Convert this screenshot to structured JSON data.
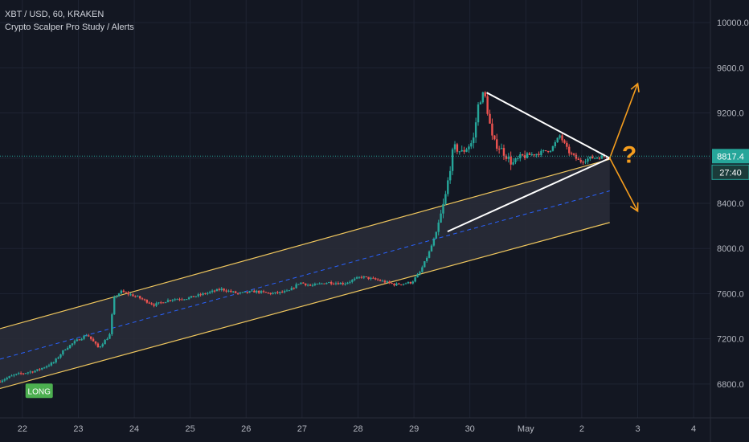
{
  "header": {
    "symbol_line": "XBT / USD, 60, KRAKEN",
    "study_line": "Crypto Scalper Pro Study / Alerts"
  },
  "colors": {
    "background": "#131722",
    "grid": "#1f2433",
    "axis_text": "#b2b5be",
    "up": "#26a69a",
    "down": "#ef5350",
    "channel_line": "#f0c75e",
    "channel_fill": "#2a2d38",
    "midline": "#2962ff",
    "triangle": "#ffffff",
    "arrow": "#f59d1e",
    "price_line": "#26a69a",
    "long_badge": "#4caf50"
  },
  "chart_data": {
    "type": "candlestick",
    "title": "",
    "xlabel": "",
    "ylabel": "",
    "x_ticks": [
      {
        "day": 22,
        "label": "22"
      },
      {
        "day": 23,
        "label": "23"
      },
      {
        "day": 24,
        "label": "24"
      },
      {
        "day": 25,
        "label": "25"
      },
      {
        "day": 26,
        "label": "26"
      },
      {
        "day": 27,
        "label": "27"
      },
      {
        "day": 28,
        "label": "28"
      },
      {
        "day": 29,
        "label": "29"
      },
      {
        "day": 30,
        "label": "30"
      },
      {
        "day": 31,
        "label": "May"
      },
      {
        "day": 32,
        "label": "2"
      },
      {
        "day": 33,
        "label": "3"
      },
      {
        "day": 34,
        "label": "4"
      }
    ],
    "xlim": [
      21.6,
      34.3
    ],
    "ylim": [
      6500,
      10200
    ],
    "y_ticks": [
      {
        "value": 10000,
        "label": "10000.0"
      },
      {
        "value": 9600,
        "label": "9600.0"
      },
      {
        "value": 9200,
        "label": "9200.0"
      },
      {
        "value": 8800,
        "label": "8800.0"
      },
      {
        "value": 8400,
        "label": "8400.0"
      },
      {
        "value": 8000,
        "label": "8000.0"
      },
      {
        "value": 7600,
        "label": "7600.0"
      },
      {
        "value": 7200,
        "label": "7200.0"
      },
      {
        "value": 6800,
        "label": "6800.0"
      }
    ],
    "grid": true,
    "price_waypoints": [
      [
        21.6,
        6820
      ],
      [
        21.9,
        6880
      ],
      [
        22.3,
        6920
      ],
      [
        22.6,
        6990
      ],
      [
        22.8,
        7110
      ],
      [
        23.0,
        7180
      ],
      [
        23.2,
        7240
      ],
      [
        23.4,
        7120
      ],
      [
        23.6,
        7230
      ],
      [
        23.68,
        7560
      ],
      [
        23.8,
        7620
      ],
      [
        24.1,
        7570
      ],
      [
        24.4,
        7500
      ],
      [
        24.7,
        7550
      ],
      [
        25.0,
        7560
      ],
      [
        25.3,
        7600
      ],
      [
        25.6,
        7640
      ],
      [
        25.9,
        7600
      ],
      [
        26.2,
        7620
      ],
      [
        26.5,
        7600
      ],
      [
        26.8,
        7620
      ],
      [
        27.0,
        7700
      ],
      [
        27.2,
        7670
      ],
      [
        27.5,
        7700
      ],
      [
        27.8,
        7690
      ],
      [
        28.1,
        7750
      ],
      [
        28.4,
        7720
      ],
      [
        28.7,
        7680
      ],
      [
        29.0,
        7700
      ],
      [
        29.15,
        7790
      ],
      [
        29.3,
        7950
      ],
      [
        29.45,
        8150
      ],
      [
        29.6,
        8450
      ],
      [
        29.75,
        8900
      ],
      [
        29.9,
        8850
      ],
      [
        30.1,
        8950
      ],
      [
        30.2,
        9300
      ],
      [
        30.3,
        9380
      ],
      [
        30.45,
        8950
      ],
      [
        30.6,
        8880
      ],
      [
        30.8,
        8750
      ],
      [
        31.0,
        8820
      ],
      [
        31.25,
        8840
      ],
      [
        31.5,
        8880
      ],
      [
        31.65,
        9000
      ],
      [
        31.8,
        8860
      ],
      [
        32.0,
        8770
      ],
      [
        32.2,
        8800
      ],
      [
        32.45,
        8817.4
      ]
    ],
    "candle_step_days": 0.0417,
    "price_line": {
      "value": 8817.4,
      "label": "8817.4"
    },
    "countdown": {
      "label": "27:40"
    },
    "channel": {
      "upper": [
        [
          21.6,
          7290
        ],
        [
          32.5,
          8790
        ]
      ],
      "lower": [
        [
          21.6,
          6760
        ],
        [
          32.5,
          8230
        ]
      ],
      "mid": [
        [
          21.6,
          7020
        ],
        [
          32.5,
          8510
        ]
      ]
    },
    "triangle": {
      "upper": [
        [
          30.3,
          9380
        ],
        [
          32.5,
          8800
        ]
      ],
      "lower": [
        [
          29.6,
          8150
        ],
        [
          32.5,
          8800
        ]
      ]
    },
    "arrows": [
      {
        "from": [
          32.5,
          8800
        ],
        "to": [
          33.0,
          9460
        ]
      },
      {
        "from": [
          32.5,
          8800
        ],
        "to": [
          33.0,
          8330
        ]
      }
    ],
    "annotations": [
      {
        "text": "?",
        "day": 32.85,
        "value": 8760
      },
      {
        "text": "LONG",
        "day": 22.3,
        "value": 6740
      }
    ]
  }
}
